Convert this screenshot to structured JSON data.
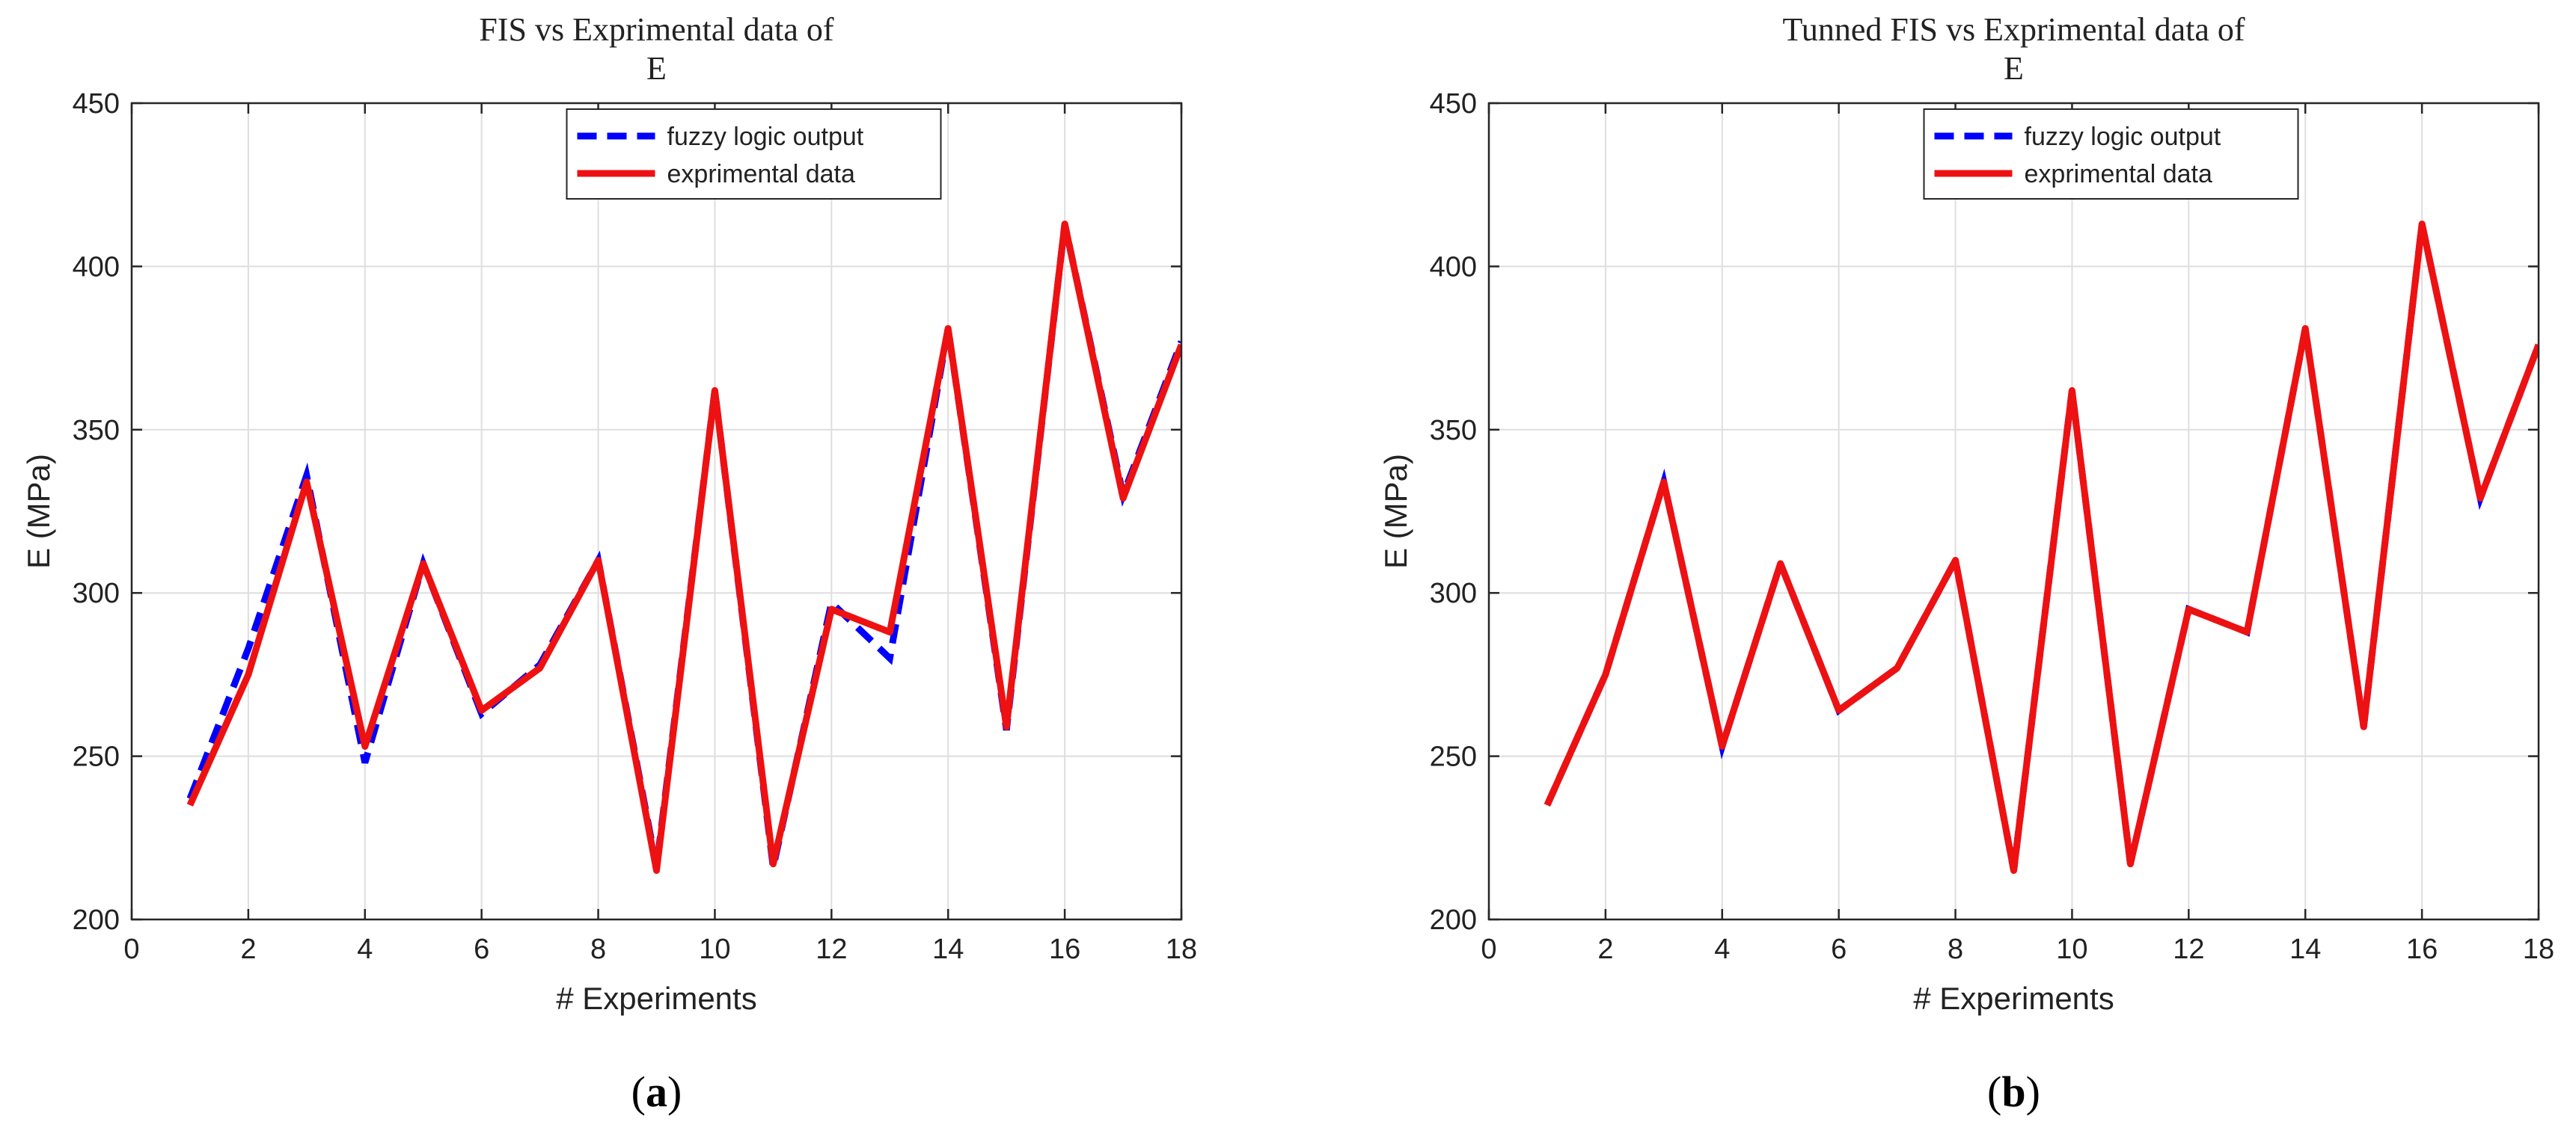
{
  "chart_data": [
    {
      "type": "line",
      "panel_label": "a",
      "title_lines": [
        "FIS vs Exprimental data of",
        "E"
      ],
      "xlabel": "# Experiments",
      "ylabel": "E (MPa)",
      "xlim": [
        0,
        18
      ],
      "ylim": [
        200,
        450
      ],
      "xticks": [
        0,
        2,
        4,
        6,
        8,
        10,
        12,
        14,
        16,
        18
      ],
      "yticks": [
        200,
        250,
        300,
        350,
        400,
        450
      ],
      "grid": true,
      "legend_position": "top-center",
      "x": [
        1,
        2,
        3,
        4,
        5,
        6,
        7,
        8,
        9,
        10,
        11,
        12,
        13,
        14,
        15,
        16,
        17,
        18
      ],
      "series": [
        {
          "name": "fuzzy logic output",
          "color": "#0000ff",
          "style": "dashed",
          "values": [
            237,
            283,
            336,
            248,
            309,
            263,
            278,
            310,
            216,
            362,
            216,
            297,
            280,
            381,
            258,
            413,
            330,
            377
          ]
        },
        {
          "name": "exprimental data",
          "color": "#ee1111",
          "style": "solid",
          "values": [
            235,
            275,
            334,
            253,
            309,
            264,
            277,
            310,
            215,
            362,
            217,
            295,
            288,
            381,
            259,
            413,
            329,
            376
          ]
        }
      ]
    },
    {
      "type": "line",
      "panel_label": "b",
      "title_lines": [
        "Tunned FIS vs Exprimental data of",
        "E"
      ],
      "xlabel": "# Experiments",
      "ylabel": "E (MPa)",
      "xlim": [
        0,
        18
      ],
      "ylim": [
        200,
        450
      ],
      "xticks": [
        0,
        2,
        4,
        6,
        8,
        10,
        12,
        14,
        16,
        18
      ],
      "yticks": [
        200,
        250,
        300,
        350,
        400,
        450
      ],
      "grid": true,
      "legend_position": "top-center",
      "x": [
        1,
        2,
        3,
        4,
        5,
        6,
        7,
        8,
        9,
        10,
        11,
        12,
        13,
        14,
        15,
        16,
        17,
        18
      ],
      "series": [
        {
          "name": "fuzzy logic output",
          "color": "#0000ff",
          "style": "dashed",
          "values": [
            235,
            275,
            334,
            253,
            309,
            264,
            277,
            310,
            215,
            362,
            217,
            295,
            288,
            381,
            259,
            413,
            329,
            376
          ]
        },
        {
          "name": "exprimental data",
          "color": "#ee1111",
          "style": "solid",
          "values": [
            235,
            275,
            334,
            253,
            309,
            264,
            277,
            310,
            215,
            362,
            217,
            295,
            288,
            381,
            259,
            413,
            329,
            376
          ]
        }
      ]
    }
  ]
}
